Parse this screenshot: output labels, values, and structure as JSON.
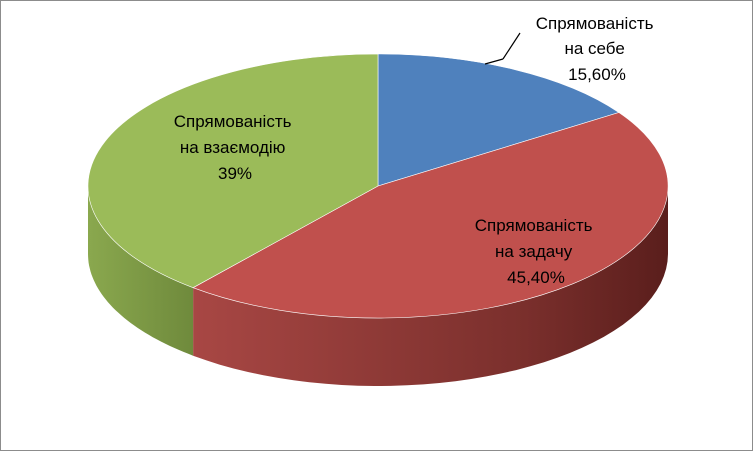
{
  "chart_data": {
    "type": "pie",
    "style": "3d-exploded-none",
    "title": "",
    "slices": [
      {
        "label_lines": [
          "Спрямованість",
          "на себе",
          "15,60%"
        ],
        "value": 15.6,
        "color": "#4f81bd"
      },
      {
        "label_lines": [
          "Спрямованість",
          "на задачу",
          "45,40%"
        ],
        "value": 45.4,
        "color": "#c0504d"
      },
      {
        "label_lines": [
          "Спрямованість",
          "на взаємодію",
          "39%"
        ],
        "value": 39,
        "color": "#9bbb59"
      }
    ],
    "legend": "none"
  }
}
